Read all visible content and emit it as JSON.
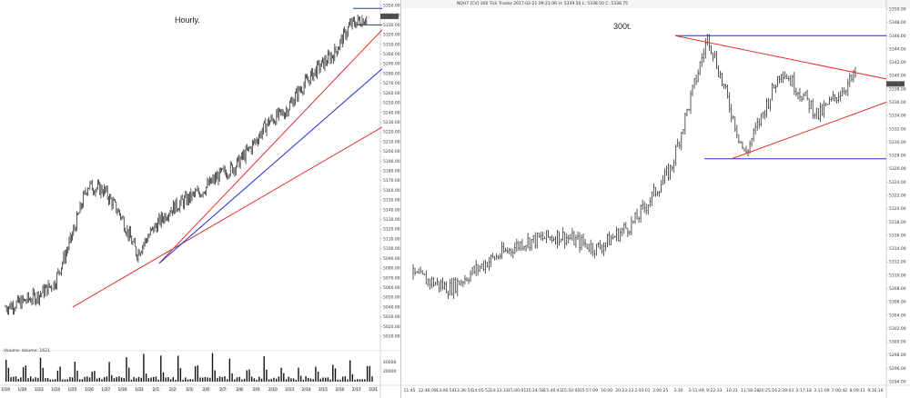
{
  "left": {
    "title": "Hourly.",
    "volume_label": "Volume: Volume: 1621",
    "last_price": "5338.75",
    "y_ticks": [
      "5350.00",
      "5340.00",
      "5330.00",
      "5320.00",
      "5310.00",
      "5300.00",
      "5290.00",
      "5280.00",
      "5270.00",
      "5260.00",
      "5250.00",
      "5240.00",
      "5230.00",
      "5220.00",
      "5210.00",
      "5200.00",
      "5190.00",
      "5180.00",
      "5170.00",
      "5160.00",
      "5150.00",
      "5140.00",
      "5130.00",
      "5120.00",
      "5110.00",
      "5100.00",
      "5090.00",
      "5080.00",
      "5070.00",
      "5060.00",
      "5050.00",
      "5040.00",
      "5030.00",
      "5020.00",
      "5010.00"
    ],
    "vol_ticks": [
      "40000",
      "20000"
    ],
    "x_ticks": [
      "1/19",
      "1/20",
      "1/23",
      "1/24",
      "1/25",
      "1/26",
      "1/27",
      "1/30",
      "1/31",
      "2/1",
      "2/2",
      "2/3",
      "2/6",
      "2/7",
      "2/8",
      "2/9",
      "2/10",
      "2/13",
      "2/14",
      "2/15",
      "2/16",
      "2/17",
      "2/21"
    ]
  },
  "right": {
    "title": "300t.",
    "header_text": "NQH7 [CV] 300 Tick Trades  2017-02-21 09:21:06  H: 5339.50  L: 5338.50  C: 5338.75",
    "last_price": "5338.75",
    "y_ticks": [
      "5350.00",
      "5348.00",
      "5346.00",
      "5344.00",
      "5342.00",
      "5340.00",
      "5338.00",
      "5336.00",
      "5334.00",
      "5332.00",
      "5330.00",
      "5328.00",
      "5326.00",
      "5324.00",
      "5322.00",
      "5320.00",
      "5318.00",
      "5316.00",
      "5314.00",
      "5312.00",
      "5310.00",
      "5308.00",
      "5306.00",
      "5304.00",
      "5302.00",
      "5300.00",
      "5298.00",
      "5296.00",
      "5294.00"
    ],
    "x_ticks": [
      "11:45",
      "12:46:09",
      "13:06:54",
      "13:36:54",
      "14:05:52",
      "14:33:33",
      "15:00:01",
      "15:24:58",
      "15:40:41",
      "15:50:00",
      "15:57:09",
      "16:00",
      "20:23:23",
      "2:03:01",
      "3:00:25",
      "3:30",
      "3:11:49",
      "9:22:33",
      "10:21",
      "11:58:28",
      "20:25:16",
      "2:39:03",
      "3:17:18",
      "3:11:09",
      "7:00:42",
      "8:09:11",
      "9:16:16"
    ]
  },
  "chart_data": [
    {
      "type": "line",
      "title": "Hourly.",
      "description_series": "NQ hourly price bars",
      "x": [
        "1/19",
        "1/20",
        "1/23",
        "1/24",
        "1/25",
        "1/26",
        "1/27",
        "1/30",
        "1/31",
        "2/1",
        "2/2",
        "2/3",
        "2/6",
        "2/7",
        "2/8",
        "2/9",
        "2/10",
        "2/13",
        "2/14",
        "2/15",
        "2/16",
        "2/17",
        "2/21"
      ],
      "series": [
        {
          "values": [
            5040,
            5045,
            5052,
            5065,
            5110,
            5165,
            5160,
            5135,
            5095,
            5120,
            5140,
            5150,
            5160,
            5175,
            5185,
            5205,
            5230,
            5240,
            5265,
            5285,
            5300,
            5330,
            5338
          ]
        }
      ],
      "ylim": [
        5010,
        5350
      ],
      "colors": {
        "trendline_red": "#e03030",
        "trendline_blue": "#2030d0"
      }
    },
    {
      "type": "line",
      "title": "300t.",
      "x": [
        "11:45",
        "13:06:54",
        "14:05:52",
        "15:00:01",
        "15:40:41",
        "16:00",
        "2:03:01",
        "3:30",
        "9:22:33",
        "11:58:28",
        "2:39:03",
        "7:00:42",
        "9:16:16"
      ],
      "series": [
        {
          "values": [
            5310,
            5308,
            5312,
            5315,
            5316,
            5314,
            5318,
            5326,
            5346,
            5328,
            5341,
            5334,
            5340
          ]
        }
      ],
      "ylim": [
        5294,
        5350
      ],
      "colors": {
        "trendline_red": "#e03030",
        "range_blue": "#2030d0"
      }
    }
  ]
}
